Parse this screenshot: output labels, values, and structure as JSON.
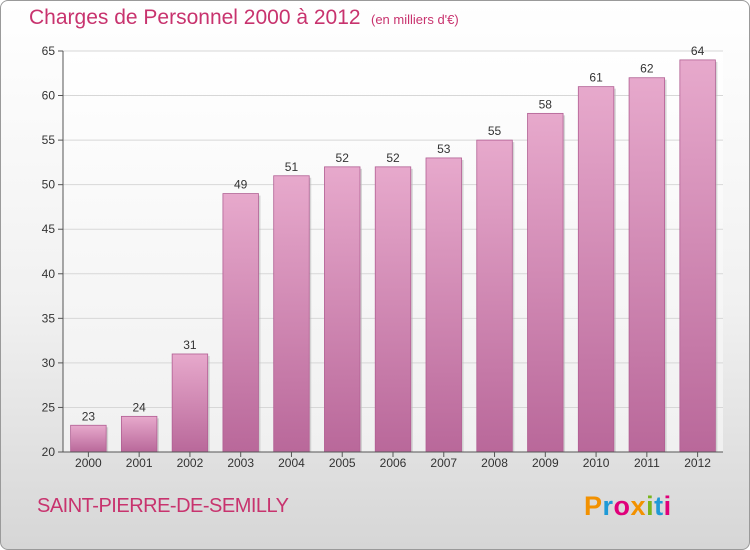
{
  "header": {
    "title": "Charges de Personnel 2000 à 2012",
    "subtitle": "(en milliers d'€)"
  },
  "footer": {
    "commune": "SAINT-PIERRE-DE-SEMILLY",
    "logo_text": "Proxiti"
  },
  "colors": {
    "accent": "#c8336e",
    "bar_light": "#e7a9cc",
    "bar_dark": "#b9689a",
    "logo_letters": [
      "#f29100",
      "#1f9ad6",
      "#e0007a",
      "#f29100",
      "#7ab51d",
      "#1f9ad6",
      "#e0007a"
    ]
  },
  "chart_data": {
    "type": "bar",
    "title": "Charges de Personnel 2000 à 2012",
    "subtitle": "(en milliers d'€)",
    "categories": [
      "2000",
      "2001",
      "2002",
      "2003",
      "2004",
      "2005",
      "2006",
      "2007",
      "2008",
      "2009",
      "2010",
      "2011",
      "2012"
    ],
    "values": [
      23,
      24,
      31,
      49,
      51,
      52,
      52,
      53,
      55,
      58,
      61,
      62,
      64
    ],
    "ylim": [
      20,
      65
    ],
    "yticks": [
      20,
      25,
      30,
      35,
      40,
      45,
      50,
      55,
      60,
      65
    ],
    "grid": true,
    "legend": "none"
  }
}
